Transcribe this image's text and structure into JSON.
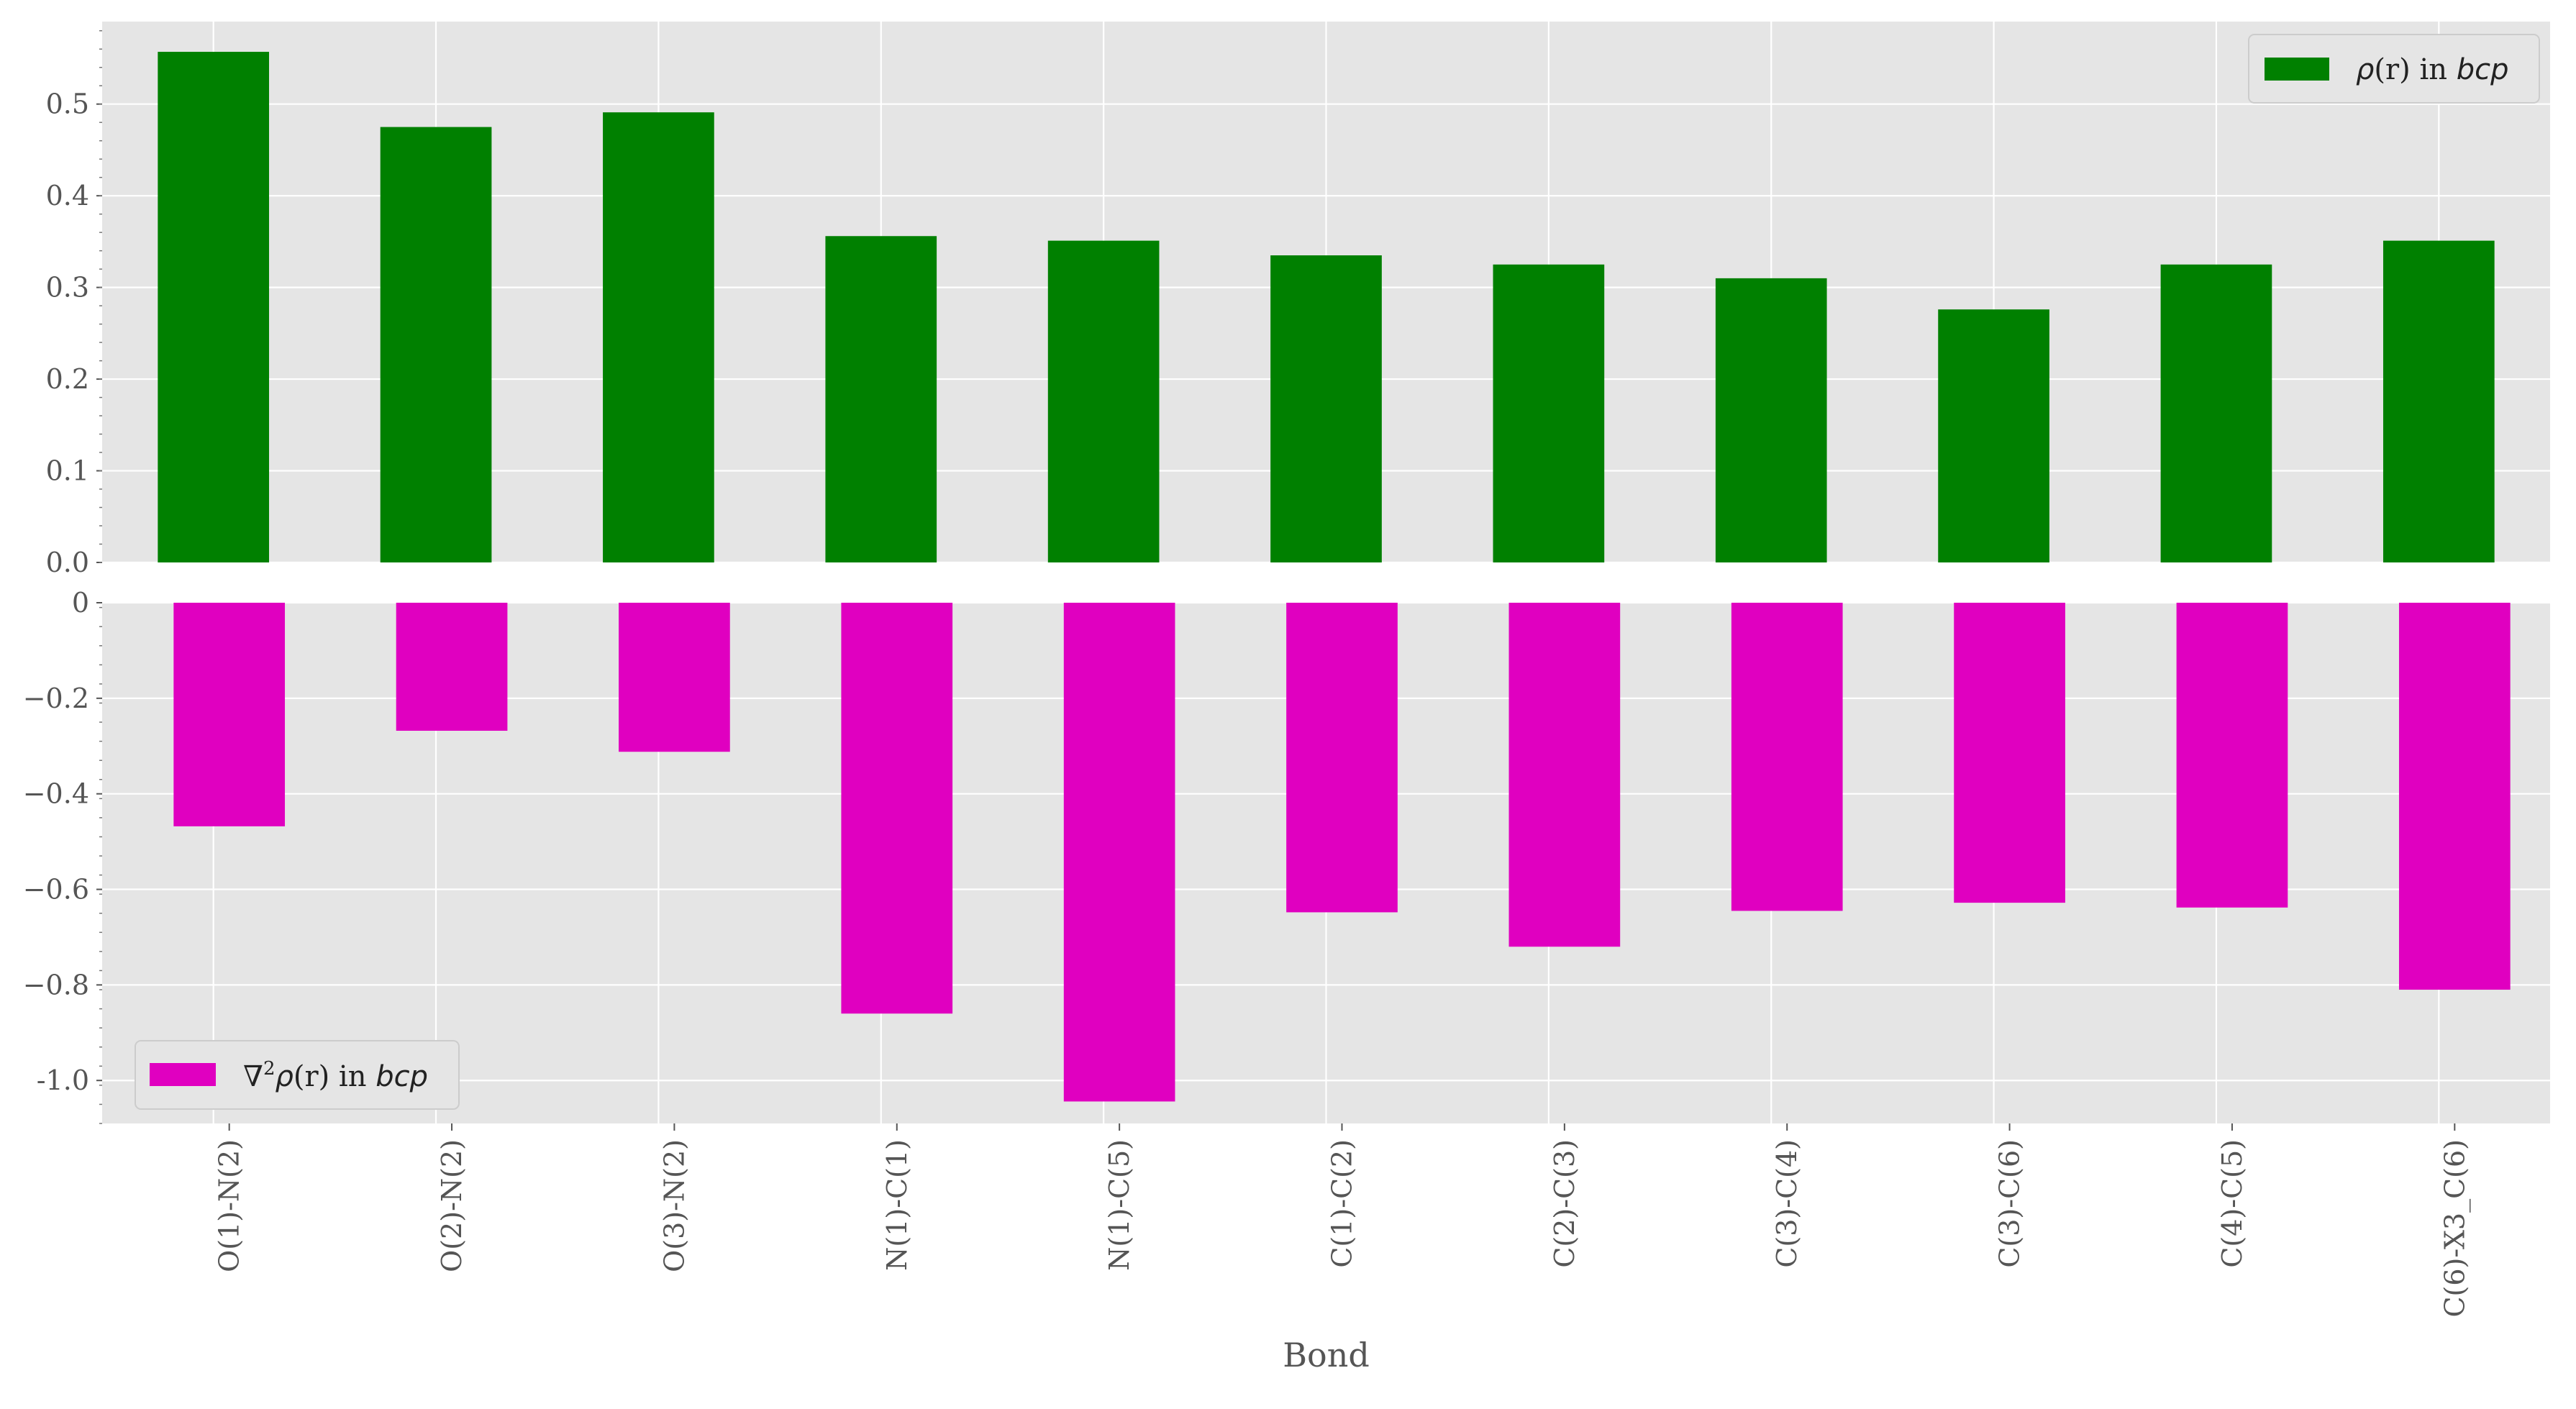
{
  "chart_data": [
    {
      "type": "bar",
      "categories": [
        "O(1)-N(2)",
        "O(2)-N(2)",
        "O(3)-N(2)",
        "N(1)-C(1)",
        "N(1)-C(5)",
        "C(1)-C(2)",
        "C(2)-C(3)",
        "C(3)-C(4)",
        "C(3)-C(6)",
        "C(4)-C(5)",
        "C(6)-X3_C(6)"
      ],
      "series": [
        {
          "name": "ρ(r) in bcp",
          "values": [
            0.557,
            0.475,
            0.491,
            0.356,
            0.351,
            0.335,
            0.325,
            0.31,
            0.276,
            0.325,
            0.351
          ],
          "color": "#008000"
        }
      ],
      "ylim": [
        0.0,
        0.59
      ],
      "yticks": [
        "0.0",
        "0.1",
        "0.2",
        "0.3",
        "0.4",
        "0.5"
      ],
      "legend": {
        "position": "top-right",
        "parts": [
          "ρ",
          "(r) in ",
          "bcp"
        ]
      },
      "grid": true
    },
    {
      "type": "bar",
      "categories": [
        "O(1)-N(2)",
        "O(2)-N(2)",
        "O(3)-N(2)",
        "N(1)-C(1)",
        "N(1)-C(5)",
        "C(1)-C(2)",
        "C(2)-C(3)",
        "C(3)-C(4)",
        "C(3)-C(6)",
        "C(4)-C(5)",
        "C(6)-X3_C(6)"
      ],
      "series": [
        {
          "name": "∇²ρ(r) in bcp",
          "values": [
            -0.468,
            -0.268,
            -0.312,
            -0.86,
            -1.044,
            -0.648,
            -0.72,
            -0.645,
            -0.628,
            -0.638,
            -0.81
          ],
          "color": "#e000c0"
        }
      ],
      "ylim": [
        -1.09,
        0.0
      ],
      "yticks": [
        "0",
        "−0.2",
        "−0.4",
        "−0.6",
        "−0.8",
        "-1.0"
      ],
      "legend": {
        "position": "bottom-left",
        "parts": [
          "∇",
          "2",
          "ρ",
          "(r) in ",
          "bcp"
        ]
      },
      "xlabel": "Bond",
      "grid": true
    }
  ]
}
